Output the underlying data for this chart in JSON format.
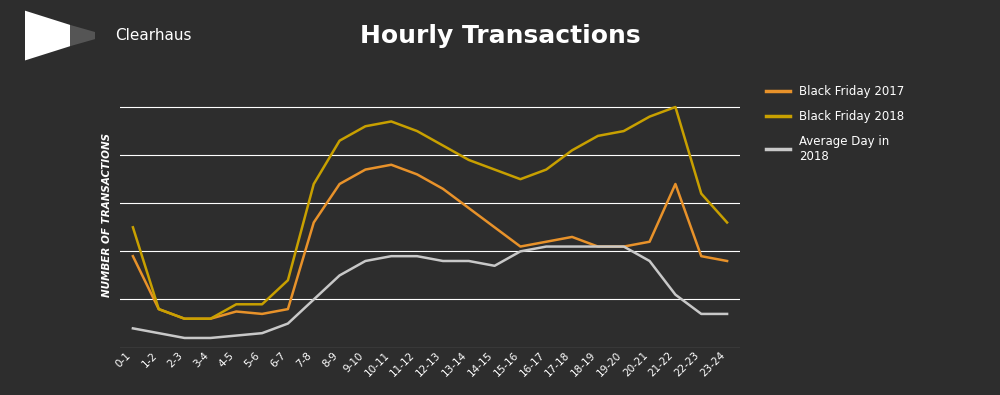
{
  "title": "Hourly Transactions",
  "ylabel": "NUMBER OF TRANSACTIONS",
  "background_color": "#2d2d2d",
  "header_color": "#383838",
  "plot_bg_color": "#2d2d2d",
  "grid_color": "#ffffff",
  "text_color": "#ffffff",
  "x_labels": [
    "0-1",
    "1-2",
    "2-3",
    "3-4",
    "4-5",
    "5-6",
    "6-7",
    "7-8",
    "8-9",
    "9-10",
    "10-11",
    "11-12",
    "12-13",
    "13-14",
    "14-15",
    "15-16",
    "16-17",
    "17-18",
    "18-19",
    "19-20",
    "20-21",
    "21-22",
    "22-23",
    "23-24"
  ],
  "bf2017": [
    38,
    16,
    12,
    12,
    15,
    14,
    16,
    52,
    68,
    74,
    76,
    72,
    66,
    58,
    50,
    42,
    44,
    46,
    42,
    42,
    44,
    68,
    38,
    36
  ],
  "bf2018": [
    50,
    16,
    12,
    12,
    18,
    18,
    28,
    68,
    86,
    92,
    94,
    90,
    84,
    78,
    74,
    70,
    74,
    82,
    88,
    90,
    96,
    100,
    64,
    52
  ],
  "avg2018": [
    8,
    6,
    4,
    4,
    5,
    6,
    10,
    20,
    30,
    36,
    38,
    38,
    36,
    36,
    34,
    40,
    42,
    42,
    42,
    42,
    36,
    22,
    14,
    14
  ],
  "color_bf2017": "#e8922a",
  "color_bf2018": "#c8a000",
  "color_avg": "#c8c8c8",
  "legend_labels": [
    "Black Friday 2017",
    "Black Friday 2018",
    "Average Day in\n2018"
  ]
}
